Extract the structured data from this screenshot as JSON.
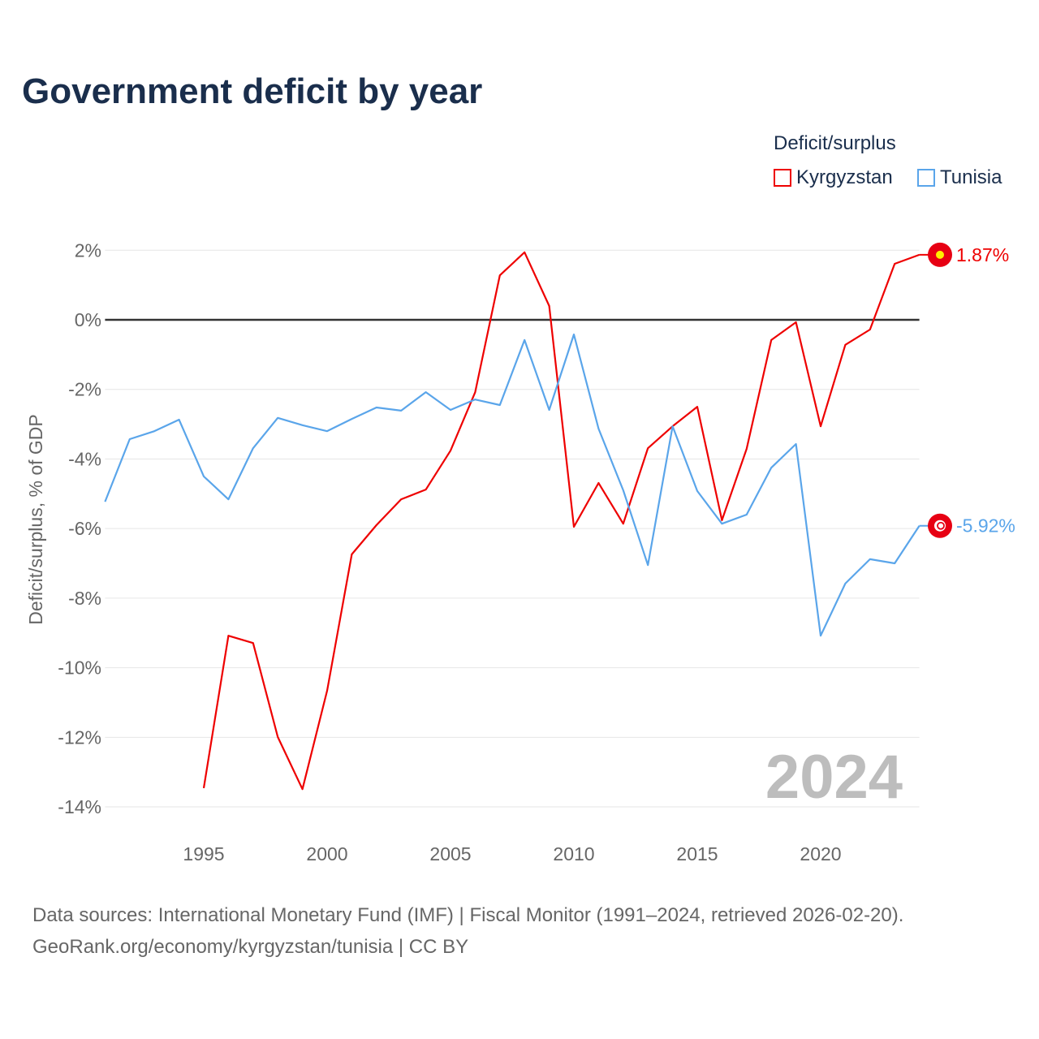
{
  "title": "Government deficit by year",
  "legend": {
    "title": "Deficit/surplus",
    "items": [
      {
        "label": "Kyrgyzstan",
        "color": "#ee0000"
      },
      {
        "label": "Tunisia",
        "color": "#5aa5ea"
      }
    ]
  },
  "footer": {
    "line1": "Data sources: International Monetary Fund (IMF) | Fiscal Monitor (1991–2024, retrieved 2026-02-20).",
    "line2": "GeoRank.org/economy/kyrgyzstan/tunisia | CC BY"
  },
  "chart_data": {
    "type": "line",
    "ylabel": "Deficit/surplus, % of GDP",
    "xlim": [
      1991,
      2024
    ],
    "ylim": [
      -14,
      2
    ],
    "yticks": [
      2,
      0,
      -2,
      -4,
      -6,
      -8,
      -10,
      -12,
      -14
    ],
    "ytick_labels": [
      "2%",
      "0%",
      "-2%",
      "-4%",
      "-6%",
      "-8%",
      "-10%",
      "-12%",
      "-14%"
    ],
    "xticks": [
      1995,
      2000,
      2005,
      2010,
      2015,
      2020
    ],
    "xtick_labels": [
      "1995",
      "2000",
      "2005",
      "2010",
      "2015",
      "2020"
    ],
    "watermark": "2024",
    "series": [
      {
        "name": "Kyrgyzstan",
        "color": "#ee0000",
        "end_label": "1.87%",
        "x": [
          1995,
          1996,
          1997,
          1998,
          1999,
          2000,
          2001,
          2002,
          2003,
          2004,
          2005,
          2006,
          2007,
          2008,
          2009,
          2010,
          2011,
          2012,
          2013,
          2014,
          2015,
          2016,
          2017,
          2018,
          2019,
          2020,
          2021,
          2022,
          2023,
          2024
        ],
        "values": [
          -13.46,
          -9.08,
          -9.29,
          -11.99,
          -13.49,
          -10.66,
          -6.74,
          -5.9,
          -5.16,
          -4.88,
          -3.76,
          -2.08,
          1.28,
          1.94,
          0.4,
          -5.95,
          -4.69,
          -5.86,
          -3.69,
          -3.06,
          -2.5,
          -5.76,
          -3.71,
          -0.58,
          -0.07,
          -3.06,
          -0.72,
          -0.28,
          1.61,
          1.87
        ]
      },
      {
        "name": "Tunisia",
        "color": "#5aa5ea",
        "end_label": "-5.92%",
        "x": [
          1991,
          1992,
          1993,
          1994,
          1995,
          1996,
          1997,
          1998,
          1999,
          2000,
          2001,
          2002,
          2003,
          2004,
          2005,
          2006,
          2007,
          2008,
          2009,
          2010,
          2011,
          2012,
          2013,
          2014,
          2015,
          2016,
          2017,
          2018,
          2019,
          2020,
          2021,
          2022,
          2023,
          2024
        ],
        "values": [
          -5.23,
          -3.43,
          -3.2,
          -2.87,
          -4.5,
          -5.16,
          -3.69,
          -2.82,
          -3.03,
          -3.2,
          -2.85,
          -2.52,
          -2.61,
          -2.08,
          -2.59,
          -2.29,
          -2.45,
          -0.58,
          -2.59,
          -0.42,
          -3.13,
          -4.9,
          -7.05,
          -3.06,
          -4.92,
          -5.86,
          -5.6,
          -4.25,
          -3.57,
          -9.08,
          -7.58,
          -6.88,
          -7.0,
          -5.92
        ]
      }
    ]
  }
}
